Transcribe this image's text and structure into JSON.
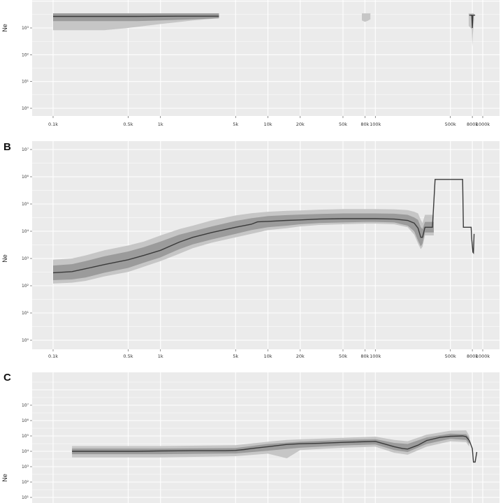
{
  "chart_data": [
    {
      "type": "area",
      "panel": "A",
      "panel_label": "",
      "ylabel": "Ne",
      "xlabel": "",
      "x_scale": "log",
      "y_scale": "log",
      "xlim": [
        70,
        1300000
      ],
      "ylim": [
        0.6,
        2000
      ],
      "x_ticks": [
        100,
        500,
        1000,
        5000,
        10000,
        20000,
        50000,
        80000,
        100000,
        500000,
        800000,
        1000000
      ],
      "x_tick_labels": [
        "0.1k",
        "0.5k",
        "1k",
        "5k",
        "10k",
        "20k",
        "50k",
        "80k",
        "100k",
        "500k",
        "800k",
        "1000k"
      ],
      "y_ticks": [
        1,
        10,
        100,
        1000
      ],
      "y_tick_labels": [
        "10⁰",
        "10¹",
        "10²",
        "10³"
      ],
      "grid": true,
      "series": [
        {
          "role": "median",
          "x": [
            100,
            300,
            600,
            1500,
            2500,
            3500
          ],
          "y": [
            2700,
            2700,
            2700,
            2750,
            2750,
            2750
          ]
        },
        {
          "role": "ci_inner",
          "x": [
            100,
            300,
            600,
            1000,
            2000,
            3500
          ],
          "lower": [
            1800,
            1800,
            1800,
            1900,
            2100,
            2300
          ],
          "upper": [
            3500,
            3500,
            3500,
            3500,
            3500,
            3500
          ]
        },
        {
          "role": "ci_outer",
          "x": [
            100,
            300,
            500,
            1000,
            2000,
            3500
          ],
          "lower": [
            820,
            820,
            1000,
            1400,
            1900,
            2300
          ],
          "upper": [
            3500,
            3500,
            3500,
            3500,
            3500,
            3500
          ]
        },
        {
          "role": "ci_outer",
          "x": [
            75000,
            80000,
            85000,
            90000
          ],
          "lower": [
            1900,
            1700,
            1850,
            2100
          ],
          "upper": [
            3500,
            3500,
            3500,
            3500
          ]
        },
        {
          "role": "median",
          "x": [
            750000,
            790000,
            800000,
            810000,
            850000
          ],
          "y": [
            3000,
            3000,
            1000,
            3000,
            3000
          ]
        },
        {
          "role": "ci_outer",
          "x": [
            740000,
            790000,
            800000,
            810000,
            830000
          ],
          "lower": [
            1200,
            900,
            200,
            600,
            2000
          ],
          "upper": [
            3500,
            3500,
            3500,
            3500,
            3500
          ]
        }
      ]
    },
    {
      "type": "area",
      "panel": "B",
      "panel_label": "B",
      "ylabel": "Ne",
      "xlabel": "",
      "x_scale": "log",
      "y_scale": "log",
      "xlim": [
        70,
        1300000
      ],
      "ylim": [
        0.6,
        12000000
      ],
      "x_ticks": [
        100,
        500,
        1000,
        5000,
        10000,
        20000,
        50000,
        80000,
        100000,
        500000,
        800000,
        1000000
      ],
      "x_tick_labels": [
        "0.1k",
        "0.5k",
        "1k",
        "5k",
        "10k",
        "20k",
        "50k",
        "80k",
        "100k",
        "500k",
        "800k",
        "1000k"
      ],
      "y_ticks": [
        1,
        10,
        100,
        1000,
        10000,
        100000,
        1000000,
        10000000
      ],
      "y_tick_labels": [
        "10⁰",
        "10¹",
        "10²",
        "10³",
        "10⁴",
        "10⁵",
        "10⁶",
        "10⁷"
      ],
      "grid": true,
      "series": [
        {
          "role": "median",
          "x": [
            100,
            150,
            200,
            300,
            500,
            700,
            1000,
            1500,
            2000,
            3000,
            5000,
            7000,
            8000,
            10000,
            15000,
            20000,
            30000,
            50000,
            80000,
            100000,
            150000,
            200000,
            230000,
            250000,
            265000,
            275000,
            290000,
            300000,
            320000,
            330000,
            340000,
            360000,
            650000,
            660000,
            690000,
            700000,
            780000,
            790000,
            800000,
            810000,
            820000,
            830000
          ],
          "y": [
            300,
            330,
            420,
            600,
            900,
            1300,
            2000,
            4000,
            6000,
            9000,
            14000,
            18000,
            22000,
            23000,
            25000,
            26000,
            28000,
            29000,
            29000,
            29000,
            28000,
            25000,
            20000,
            13000,
            6000,
            6000,
            14000,
            14000,
            14000,
            14000,
            14000,
            800000,
            800000,
            14000,
            14000,
            14000,
            14000,
            5000,
            3000,
            1700,
            1600,
            8000
          ]
        },
        {
          "role": "ci_inner",
          "x": [
            100,
            150,
            200,
            300,
            500,
            700,
            1000,
            1500,
            2000,
            3000,
            5000,
            7000,
            10000,
            15000,
            20000,
            30000,
            50000,
            80000,
            100000,
            150000,
            200000,
            230000,
            250000,
            265000,
            275000,
            290000,
            300000,
            350000
          ],
          "lower": [
            160,
            170,
            200,
            300,
            450,
            700,
            1100,
            2200,
            3300,
            5000,
            8000,
            11000,
            14000,
            16000,
            18000,
            20000,
            21000,
            22000,
            22000,
            21000,
            16000,
            10000,
            4500,
            2800,
            3500,
            9000,
            9000,
            9000
          ],
          "upper": [
            550,
            620,
            800,
            1200,
            1800,
            2600,
            4200,
            7500,
            10000,
            15000,
            24000,
            30000,
            36000,
            39000,
            41000,
            43000,
            45000,
            45000,
            45000,
            44000,
            40000,
            32000,
            26000,
            14000,
            12000,
            22000,
            22000,
            22000
          ]
        },
        {
          "role": "ci_outer",
          "x": [
            100,
            150,
            200,
            300,
            500,
            700,
            1000,
            1500,
            2000,
            3000,
            5000,
            7000,
            10000,
            15000,
            20000,
            30000,
            50000,
            80000,
            100000,
            150000,
            200000,
            230000,
            250000,
            265000,
            275000,
            290000,
            300000,
            350000
          ],
          "lower": [
            120,
            130,
            150,
            220,
            320,
            500,
            800,
            1500,
            2400,
            3800,
            6000,
            8000,
            11000,
            13000,
            15000,
            17000,
            18000,
            19000,
            19000,
            18000,
            14000,
            7500,
            3500,
            2200,
            2700,
            7000,
            7000,
            7000
          ],
          "upper": [
            900,
            1000,
            1300,
            2000,
            3000,
            4200,
            7000,
            12000,
            16000,
            25000,
            38000,
            46000,
            52000,
            56000,
            58000,
            62000,
            65000,
            65000,
            65000,
            64000,
            60000,
            52000,
            45000,
            26000,
            20000,
            40000,
            40000,
            40000
          ]
        }
      ]
    },
    {
      "type": "area",
      "panel": "C",
      "panel_label": "C",
      "ylabel": "Ne",
      "xlabel": "",
      "x_scale": "log",
      "y_scale": "log",
      "xlim": [
        70,
        1300000
      ],
      "ylim": [
        5,
        12000000
      ],
      "x_ticks": [],
      "x_tick_labels": [],
      "y_ticks": [
        10,
        100,
        1000,
        10000,
        100000,
        1000000,
        10000000
      ],
      "y_tick_labels": [
        "10¹",
        "10²",
        "10³",
        "10⁴",
        "10⁵",
        "10⁶",
        "10⁷"
      ],
      "grid": true,
      "series": [
        {
          "role": "median",
          "x": [
            150,
            300,
            600,
            1000,
            2000,
            3000,
            4000,
            5000,
            6000,
            7000,
            10000,
            15000,
            20000,
            30000,
            50000,
            70000,
            100000,
            150000,
            180000,
            200000,
            250000,
            300000,
            400000,
            500000,
            650000,
            700000,
            750000,
            800000,
            820000,
            850000,
            880000
          ],
          "y": [
            10000,
            10000,
            10000,
            10500,
            11000,
            11000,
            11000,
            11500,
            13000,
            15000,
            20000,
            28000,
            31000,
            33000,
            38000,
            41000,
            44000,
            20000,
            15000,
            14000,
            25000,
            50000,
            80000,
            95000,
            100000,
            90000,
            50000,
            15000,
            2000,
            2000,
            9000
          ]
        },
        {
          "role": "ci_inner",
          "x": [
            150,
            1000,
            3000,
            5000,
            10000,
            20000,
            50000,
            100000,
            150000,
            200000,
            300000,
            500000,
            700000,
            750000
          ],
          "lower": [
            6500,
            6500,
            7000,
            7200,
            11000,
            17000,
            24000,
            28000,
            12000,
            9000,
            30000,
            65000,
            55000,
            30000
          ],
          "upper": [
            15000,
            15000,
            16000,
            16500,
            30000,
            42000,
            55000,
            62000,
            35000,
            30000,
            80000,
            140000,
            130000,
            75000
          ]
        },
        {
          "role": "ci_outer",
          "x": [
            150,
            1000,
            3000,
            5000,
            10000,
            15000,
            20000,
            50000,
            100000,
            150000,
            200000,
            300000,
            500000,
            700000,
            750000
          ],
          "lower": [
            4000,
            4000,
            4500,
            4800,
            7000,
            3500,
            12000,
            17000,
            20000,
            8000,
            6000,
            20000,
            45000,
            40000,
            20000
          ],
          "upper": [
            22000,
            22000,
            24000,
            25000,
            42000,
            55000,
            60000,
            75000,
            90000,
            55000,
            45000,
            120000,
            220000,
            230000,
            100000
          ]
        }
      ]
    }
  ]
}
